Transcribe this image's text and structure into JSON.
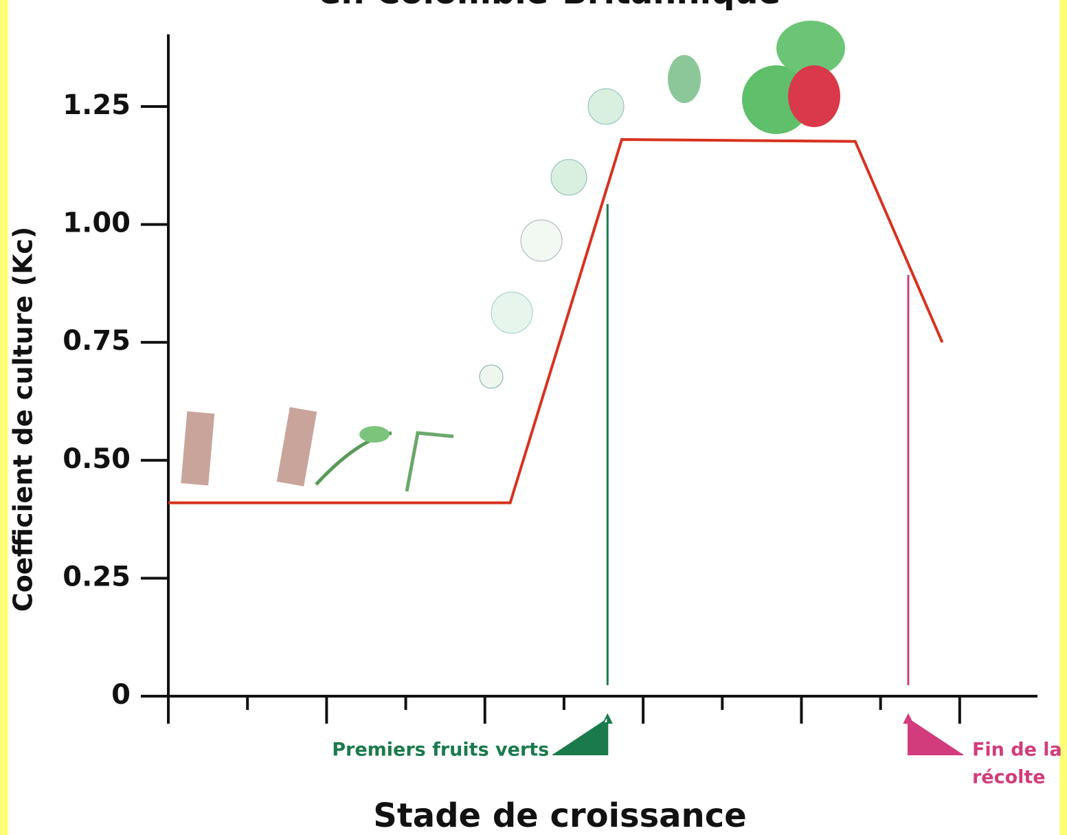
{
  "chart_data": {
    "type": "line",
    "title": "en Colombie-Britannique",
    "y_label": "Coefficient de culture (Kc)",
    "x_label": "Stade de croissance",
    "x": [
      0,
      4.32,
      5.73,
      8.68,
      9.78
    ],
    "series": [
      {
        "color": "#d7321e",
        "values": [
          0.41,
          0.41,
          1.18,
          1.176,
          0.75
        ]
      }
    ],
    "xlim": [
      0,
      11
    ],
    "xticks": [
      0,
      1,
      2,
      3,
      4,
      5,
      6,
      7,
      8,
      9,
      10
    ],
    "ylim": [
      0,
      1.4
    ],
    "yticks": [
      0,
      0.25,
      {
        "value": 0.5,
        "label": "0.50"
      },
      0.75,
      {
        "value": 1,
        "label": "1.00"
      },
      1.25
    ],
    "annotations": [
      {
        "text": [
          "Premiers fruits verts"
        ],
        "x": 5.55,
        "color": "#1b7a4c"
      },
      {
        "text": [
          "Fin de la",
          "récolte"
        ],
        "x": 9.35,
        "color": "#d23c7c"
      }
    ]
  }
}
